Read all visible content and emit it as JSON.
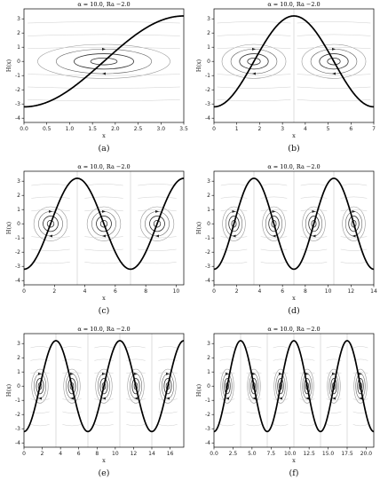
{
  "figure": {
    "panels": [
      "a",
      "b",
      "c",
      "d",
      "e",
      "f"
    ]
  },
  "chart_data": [
    {
      "id": "a",
      "caption": "(a)",
      "type": "line",
      "title": "α = 10.0, Ra −2.0",
      "xlabel": "x",
      "ylabel": "H(x)",
      "xlim": [
        0,
        3.5
      ],
      "ylim": [
        -4.3,
        3.7
      ],
      "xticks": [
        "0.0",
        "0.5",
        "1.0",
        "1.5",
        "2.0",
        "2.5",
        "3.0",
        "3.5"
      ],
      "yticks": [
        "-4",
        "-3",
        "-2",
        "-1",
        "0",
        "1",
        "2",
        "3"
      ],
      "series": [
        {
          "amplitude": 3.2,
          "period": 7.0,
          "domain": [
            0,
            3.5
          ]
        }
      ],
      "streamline_cells": [
        {
          "cx": 1.75,
          "half_width": 1.45
        }
      ]
    },
    {
      "id": "b",
      "caption": "(b)",
      "type": "line",
      "title": "α = 10.0, Ra −2.0",
      "xlabel": "x",
      "ylabel": "H(x)",
      "xlim": [
        0,
        7
      ],
      "ylim": [
        -4.3,
        3.7
      ],
      "xticks": [
        "0",
        "1",
        "2",
        "3",
        "4",
        "5",
        "6",
        "7"
      ],
      "yticks": [
        "-4",
        "-3",
        "-2",
        "-1",
        "0",
        "1",
        "2",
        "3"
      ],
      "series": [
        {
          "amplitude": 3.2,
          "period": 7.0,
          "domain": [
            0,
            7
          ]
        }
      ],
      "streamline_cells": [
        {
          "cx": 1.75,
          "half_width": 1.4
        },
        {
          "cx": 5.25,
          "half_width": 1.4
        }
      ]
    },
    {
      "id": "c",
      "caption": "(c)",
      "type": "line",
      "title": "α = 10.0, Ra −2.0",
      "xlabel": "x",
      "ylabel": "H(x)",
      "xlim": [
        0,
        10.5
      ],
      "ylim": [
        -4.3,
        3.7
      ],
      "xticks": [
        "0",
        "2",
        "4",
        "6",
        "8",
        "10"
      ],
      "ytick_values": [
        -4,
        -3,
        -2,
        -1,
        0,
        1,
        2,
        3
      ],
      "yticks": [
        "-4",
        "-3",
        "-2",
        "-1",
        "0",
        "1",
        "2",
        "3"
      ],
      "series": [
        {
          "amplitude": 3.2,
          "period": 7.0,
          "domain": [
            0,
            10.5
          ]
        }
      ],
      "streamline_cells": [
        {
          "cx": 1.75,
          "half_width": 1.1
        },
        {
          "cx": 5.25,
          "half_width": 1.1
        },
        {
          "cx": 8.75,
          "half_width": 1.1
        }
      ]
    },
    {
      "id": "d",
      "caption": "(d)",
      "type": "line",
      "title": "α = 10.0, Ra −2.0",
      "xlabel": "x",
      "ylabel": "H(x)",
      "xlim": [
        0,
        14
      ],
      "ylim": [
        -4.3,
        3.7
      ],
      "xticks": [
        "0",
        "2",
        "4",
        "6",
        "8",
        "10",
        "12",
        "14"
      ],
      "yticks": [
        "-4",
        "-3",
        "-2",
        "-1",
        "0",
        "1",
        "2",
        "3"
      ],
      "series": [
        {
          "amplitude": 3.2,
          "period": 7.0,
          "domain": [
            0,
            14
          ]
        }
      ],
      "streamline_cells": [
        {
          "cx": 1.75,
          "half_width": 1.0
        },
        {
          "cx": 5.25,
          "half_width": 1.0
        },
        {
          "cx": 8.75,
          "half_width": 1.0
        },
        {
          "cx": 12.25,
          "half_width": 1.0
        }
      ]
    },
    {
      "id": "e",
      "caption": "(e)",
      "type": "line",
      "title": "α = 10.0, Ra −2.0",
      "xlabel": "x",
      "ylabel": "H(x)",
      "xlim": [
        0,
        17.5
      ],
      "ylim": [
        -4.3,
        3.7
      ],
      "xticks": [
        "0",
        "2",
        "4",
        "6",
        "8",
        "10",
        "12",
        "14",
        "16"
      ],
      "yticks": [
        "-4",
        "-3",
        "-2",
        "-1",
        "0",
        "1",
        "2",
        "3"
      ],
      "series": [
        {
          "amplitude": 3.2,
          "period": 7.0,
          "domain": [
            0,
            17.5
          ]
        }
      ],
      "streamline_cells": [
        {
          "cx": 1.75,
          "half_width": 0.9
        },
        {
          "cx": 5.25,
          "half_width": 0.9
        },
        {
          "cx": 8.75,
          "half_width": 0.9
        },
        {
          "cx": 12.25,
          "half_width": 0.9
        },
        {
          "cx": 15.75,
          "half_width": 0.9
        }
      ]
    },
    {
      "id": "f",
      "caption": "(f)",
      "type": "line",
      "title": "α = 10.0, Ra −2.0",
      "xlabel": "x",
      "ylabel": "H(x)",
      "xlim": [
        0,
        21
      ],
      "ylim": [
        -4.3,
        3.7
      ],
      "xticks": [
        "0.0",
        "2.5",
        "5.0",
        "7.5",
        "10.0",
        "12.5",
        "15.0",
        "17.5",
        "20.0"
      ],
      "yticks": [
        "-4",
        "-3",
        "-2",
        "-1",
        "0",
        "1",
        "2",
        "3"
      ],
      "series": [
        {
          "amplitude": 3.2,
          "period": 7.0,
          "domain": [
            0,
            21
          ]
        }
      ],
      "streamline_cells": [
        {
          "cx": 1.75,
          "half_width": 0.85
        },
        {
          "cx": 5.25,
          "half_width": 0.85
        },
        {
          "cx": 8.75,
          "half_width": 0.85
        },
        {
          "cx": 12.25,
          "half_width": 0.85
        },
        {
          "cx": 15.75,
          "half_width": 0.85
        },
        {
          "cx": 19.25,
          "half_width": 0.85
        }
      ]
    }
  ]
}
